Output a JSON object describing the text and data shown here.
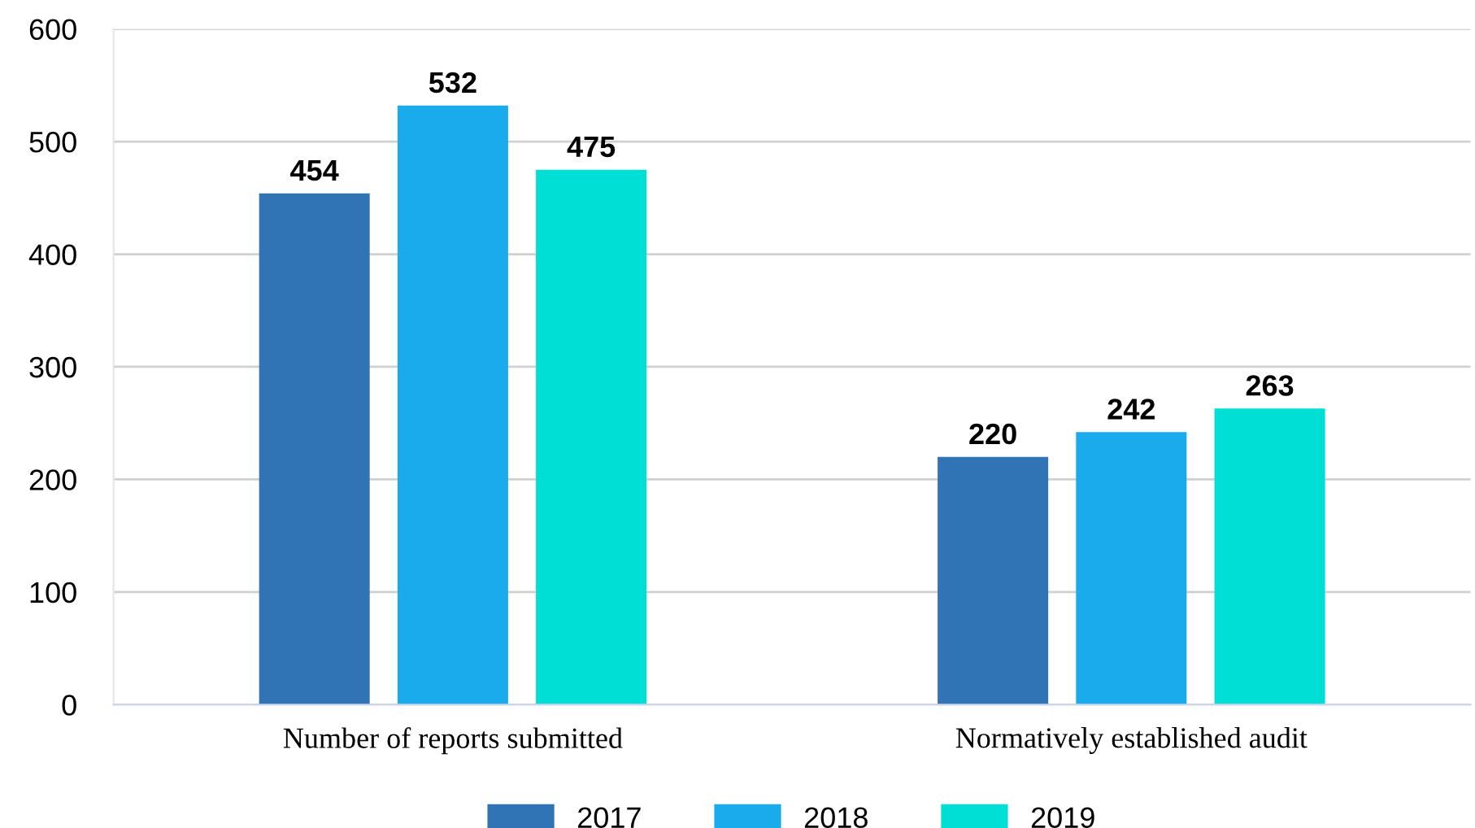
{
  "chart_data": {
    "type": "bar",
    "categories": [
      "Number of reports submitted",
      "Normatively established audit"
    ],
    "series": [
      {
        "name": "2017",
        "color": "#3074b5",
        "values": [
          454,
          220
        ]
      },
      {
        "name": "2018",
        "color": "#1aabec",
        "values": [
          532,
          242
        ]
      },
      {
        "name": "2019",
        "color": "#00dfd6",
        "values": [
          475,
          263
        ]
      }
    ],
    "ylim": [
      0,
      600
    ],
    "yticks": [
      0,
      100,
      200,
      300,
      400,
      500,
      600
    ],
    "grid": "y",
    "legend": "bottom",
    "data_labels": true
  }
}
